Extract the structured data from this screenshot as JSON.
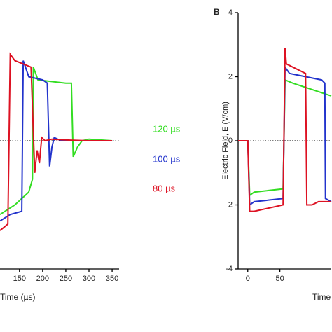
{
  "chart_data": [
    {
      "type": "line",
      "xlabel": "Time (µs)",
      "xlim": [
        108,
        365
      ],
      "xticks": [
        150,
        200,
        250,
        300,
        350
      ],
      "ylim": [
        -4,
        4
      ],
      "series": [
        {
          "name": "120 µs",
          "color": "#33dd22",
          "x": [
            108,
            140,
            170,
            178,
            180,
            190,
            250,
            262,
            266,
            275,
            285,
            300,
            350
          ],
          "values": [
            -2.3,
            -2.0,
            -1.6,
            -1.2,
            2.3,
            1.9,
            1.8,
            1.8,
            -0.5,
            -0.2,
            0,
            0.05,
            0
          ]
        },
        {
          "name": "100 µs",
          "color": "#2233cc",
          "x": [
            108,
            130,
            155,
            158,
            170,
            200,
            210,
            215,
            220,
            225,
            240,
            300,
            350
          ],
          "values": [
            -2.5,
            -2.3,
            -2.2,
            2.5,
            2.0,
            1.9,
            1.8,
            -0.8,
            -0.2,
            0.1,
            0,
            0,
            0
          ]
        },
        {
          "name": "80 µs",
          "color": "#dd1122",
          "x": [
            108,
            125,
            130,
            140,
            175,
            183,
            188,
            193,
            198,
            205,
            220,
            260,
            300,
            350
          ],
          "values": [
            -2.8,
            -2.6,
            2.7,
            2.5,
            2.3,
            -1.0,
            -0.3,
            -0.7,
            0.1,
            0,
            0.05,
            0.02,
            0,
            0
          ]
        }
      ]
    },
    {
      "type": "line",
      "panel": "B",
      "xlabel": "Time",
      "ylabel": "Electric Field, E (V/cm)",
      "xlim": [
        -15,
        130
      ],
      "xticks": [
        0,
        50
      ],
      "ylim": [
        -4,
        4
      ],
      "yticks": [
        -4,
        -2,
        0,
        2,
        4
      ],
      "series": [
        {
          "color": "#33dd22",
          "x": [
            -15,
            0,
            3,
            10,
            55,
            58,
            70,
            130
          ],
          "values": [
            0,
            0,
            -1.7,
            -1.6,
            -1.5,
            1.9,
            1.8,
            1.4
          ]
        },
        {
          "color": "#2233cc",
          "x": [
            -15,
            0,
            3,
            10,
            55,
            58,
            65,
            115,
            120,
            121,
            130
          ],
          "values": [
            0,
            0,
            -2.0,
            -1.9,
            -1.8,
            2.3,
            2.1,
            1.9,
            1.8,
            -1.8,
            -1.9
          ]
        },
        {
          "color": "#dd1122",
          "x": [
            -15,
            0,
            3,
            10,
            55,
            58,
            60,
            90,
            92,
            100,
            110,
            130
          ],
          "values": [
            0,
            0,
            -2.2,
            -2.2,
            -2.0,
            2.9,
            2.4,
            2.1,
            -2.0,
            -2.0,
            -1.9,
            -1.9
          ]
        }
      ]
    }
  ]
}
